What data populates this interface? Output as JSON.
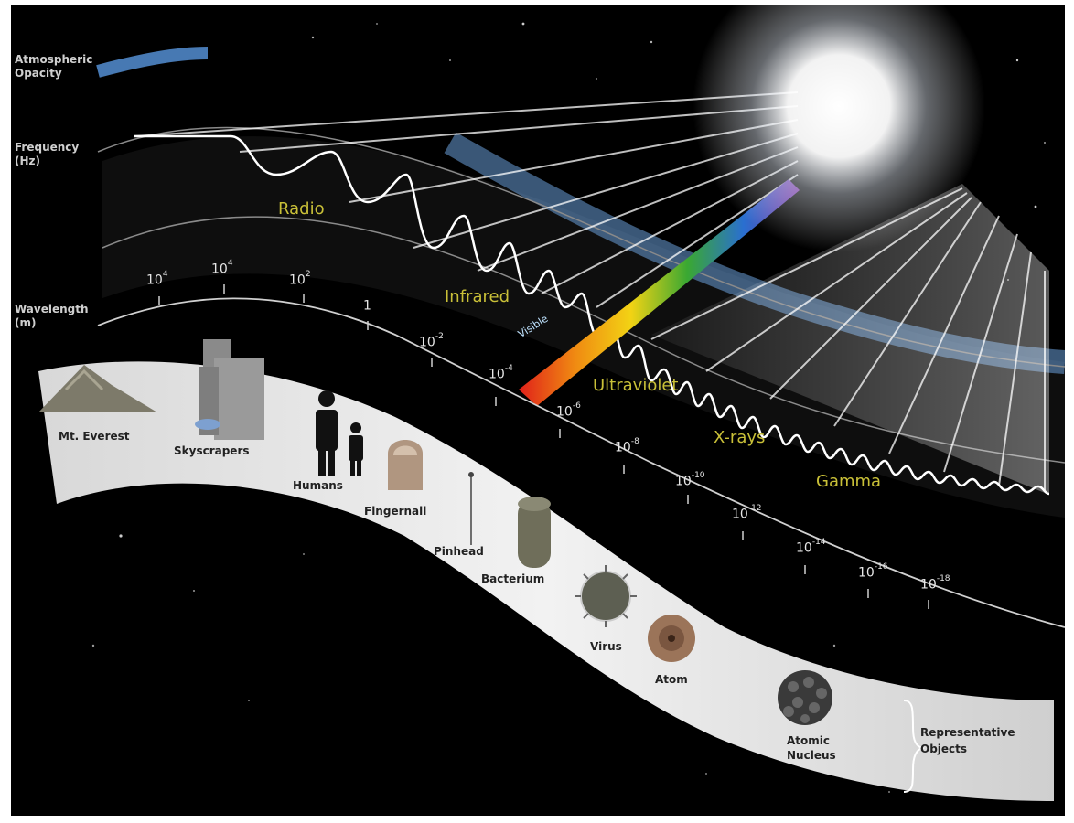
{
  "axes": {
    "opacity": "Atmospheric Opacity",
    "frequency": "Frequency (Hz)",
    "wavelength": "Wavelength (m)"
  },
  "bands": {
    "radio": "Radio",
    "infrared": "Infrared",
    "visible": "Visible",
    "ultraviolet": "Ultraviolet",
    "xrays": "X-rays",
    "gamma": "Gamma"
  },
  "wavelength_ticks": [
    {
      "base": "10",
      "exp": "4"
    },
    {
      "base": "10",
      "exp": "4"
    },
    {
      "base": "10",
      "exp": "2"
    },
    {
      "base": "1",
      "exp": ""
    },
    {
      "base": "10",
      "exp": "-2"
    },
    {
      "base": "10",
      "exp": "-4"
    },
    {
      "base": "10",
      "exp": "-6"
    },
    {
      "base": "10",
      "exp": "-8"
    },
    {
      "base": "10",
      "exp": "-10"
    },
    {
      "base": "10",
      "exp": "-12"
    },
    {
      "base": "10",
      "exp": "-14"
    },
    {
      "base": "10",
      "exp": "-16"
    },
    {
      "base": "10",
      "exp": "-18"
    }
  ],
  "objects": {
    "everest": "Mt. Everest",
    "skyscrapers": "Skyscrapers",
    "humans": "Humans",
    "fingernail": "Fingernail",
    "pinhead": "Pinhead",
    "bacterium": "Bacterium",
    "virus": "Virus",
    "atom": "Atom",
    "nucleus": "Atomic Nucleus",
    "representative": "Representative Objects"
  },
  "colors": {
    "background": "#000000",
    "band_label": "#c9c038",
    "opacity_band": "#4f86c6",
    "object_ribbon": "#e2e2e2"
  }
}
